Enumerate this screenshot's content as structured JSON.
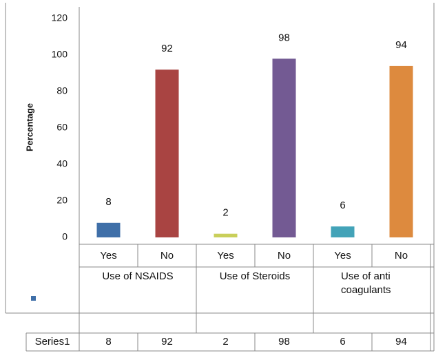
{
  "chart_data": {
    "type": "bar",
    "y_label": "Percentage",
    "categories": [
      "Yes",
      "No",
      "Yes",
      "No",
      "Yes",
      "No"
    ],
    "groups": [
      "Use of NSAIDS",
      "Use of Steroids",
      "Use of anti coagulants"
    ],
    "series": [
      {
        "name": "Series1",
        "values": [
          8,
          92,
          2,
          98,
          6,
          94
        ],
        "colors": [
          "#3f6fa8",
          "#a94442",
          "#c9cf5a",
          "#735a93",
          "#43a3b8",
          "#dd8a3e"
        ]
      }
    ],
    "ylim": [
      0,
      120
    ],
    "yticks": [
      0,
      20,
      40,
      60,
      80,
      100,
      120
    ]
  }
}
